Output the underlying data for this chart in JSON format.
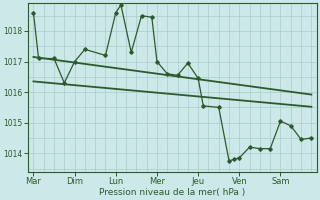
{
  "background_color": "#cce8e8",
  "grid_color": "#aacccc",
  "line_color": "#2d5a2d",
  "xlabel": "Pression niveau de la mer( hPa )",
  "day_labels": [
    "Mar",
    "Dim",
    "Lun",
    "Mer",
    "Jeu",
    "Ven",
    "Sam"
  ],
  "day_x": [
    0,
    24,
    48,
    72,
    96,
    120,
    144
  ],
  "xlim": [
    -3,
    165
  ],
  "yticks": [
    1014,
    1015,
    1016,
    1017,
    1018
  ],
  "ylim": [
    1013.4,
    1018.9
  ],
  "main_line": {
    "x": [
      0,
      3,
      12,
      18,
      24,
      30,
      42,
      48,
      51,
      57,
      63,
      69,
      72,
      78,
      84,
      90,
      96,
      99,
      108,
      114,
      117,
      120,
      126,
      132,
      138,
      144,
      150,
      156,
      162
    ],
    "y": [
      1018.6,
      1017.1,
      1017.1,
      1016.3,
      1017.0,
      1017.4,
      1017.2,
      1018.6,
      1018.85,
      1017.3,
      1018.5,
      1018.45,
      1017.0,
      1016.6,
      1016.55,
      1016.95,
      1016.45,
      1015.55,
      1015.5,
      1013.75,
      1013.8,
      1013.85,
      1014.2,
      1014.15,
      1014.15,
      1015.05,
      1014.9,
      1014.45,
      1014.5
    ]
  },
  "trend_line1": {
    "x": [
      0,
      162
    ],
    "y": [
      1017.15,
      1015.92
    ]
  },
  "trend_line2": {
    "x": [
      0,
      162
    ],
    "y": [
      1016.35,
      1015.52
    ]
  }
}
